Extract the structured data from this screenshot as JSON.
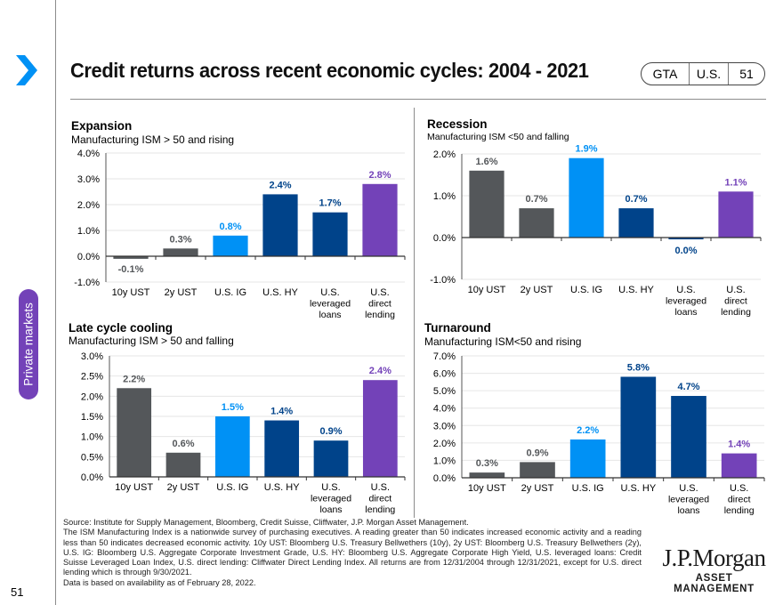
{
  "header": {
    "title": "Credit returns across recent economic cycles: 2004 - 2021",
    "pill": [
      "GTA",
      "U.S.",
      "51"
    ],
    "nav_icon": "chevron-right-icon"
  },
  "sidebar": {
    "section_tab": "Private markets",
    "page_number": "51"
  },
  "colors": {
    "treasury": "#54575a",
    "ig": "#0091f5",
    "hy": "#00438a",
    "direct_lending": "#7342b8",
    "accent": "#0091f5"
  },
  "chart_data": [
    {
      "type": "bar",
      "title": "Expansion",
      "subtitle": "Manufacturing ISM > 50 and rising",
      "categories": [
        "10y UST",
        "2y UST",
        "U.S. IG",
        "U.S. HY",
        "U.S. leveraged loans",
        "U.S. direct lending"
      ],
      "category_lines": [
        [
          "10y UST"
        ],
        [
          "2y UST"
        ],
        [
          "U.S. IG"
        ],
        [
          "U.S. HY"
        ],
        [
          "U.S.",
          "leveraged",
          "loans"
        ],
        [
          "U.S.",
          "direct",
          "lending"
        ]
      ],
      "values": [
        -0.1,
        0.3,
        0.8,
        2.4,
        1.7,
        2.8
      ],
      "labels": [
        "-0.1%",
        "0.3%",
        "0.8%",
        "2.4%",
        "1.7%",
        "2.8%"
      ],
      "ylim": [
        -1.0,
        4.0
      ],
      "yticks": [
        -1.0,
        0.0,
        1.0,
        2.0,
        3.0,
        4.0
      ],
      "ytick_labels": [
        "-1.0%",
        "0.0%",
        "1.0%",
        "2.0%",
        "3.0%",
        "4.0%"
      ],
      "grid": true,
      "xlabel": "",
      "ylabel": ""
    },
    {
      "type": "bar",
      "title": "Recession",
      "subtitle": "Manufacturing ISM <50 and falling",
      "categories": [
        "10y UST",
        "2y UST",
        "U.S. IG",
        "U.S. HY",
        "U.S. leveraged loans",
        "U.S. direct lending"
      ],
      "category_lines": [
        [
          "10y UST"
        ],
        [
          "2y UST"
        ],
        [
          "U.S. IG"
        ],
        [
          "U.S. HY"
        ],
        [
          "U.S.",
          "leveraged",
          "loans"
        ],
        [
          "U.S.",
          "direct",
          "lending"
        ]
      ],
      "values": [
        1.6,
        0.7,
        1.9,
        0.7,
        -0.04,
        1.1
      ],
      "labels": [
        "1.6%",
        "0.7%",
        "1.9%",
        "0.7%",
        "0.0%",
        "1.1%"
      ],
      "ylim": [
        -1.0,
        2.0
      ],
      "yticks": [
        -1.0,
        0.0,
        1.0,
        2.0
      ],
      "ytick_labels": [
        "-1.0%",
        "0.0%",
        "1.0%",
        "2.0%"
      ],
      "grid": true,
      "xlabel": "",
      "ylabel": ""
    },
    {
      "type": "bar",
      "title": "Late cycle cooling",
      "subtitle": "Manufacturing ISM > 50 and falling",
      "categories": [
        "10y UST",
        "2y UST",
        "U.S. IG",
        "U.S. HY",
        "U.S. leveraged loans",
        "U.S. direct lending"
      ],
      "category_lines": [
        [
          "10y UST"
        ],
        [
          "2y UST"
        ],
        [
          "U.S. IG"
        ],
        [
          "U.S. HY"
        ],
        [
          "U.S.",
          "leveraged",
          "loans"
        ],
        [
          "U.S.",
          "direct",
          "lending"
        ]
      ],
      "values": [
        2.2,
        0.6,
        1.5,
        1.4,
        0.9,
        2.4
      ],
      "labels": [
        "2.2%",
        "0.6%",
        "1.5%",
        "1.4%",
        "0.9%",
        "2.4%"
      ],
      "ylim": [
        0.0,
        3.0
      ],
      "yticks": [
        0.0,
        0.5,
        1.0,
        1.5,
        2.0,
        2.5,
        3.0
      ],
      "ytick_labels": [
        "0.0%",
        "0.5%",
        "1.0%",
        "1.5%",
        "2.0%",
        "2.5%",
        "3.0%"
      ],
      "grid": true,
      "xlabel": "",
      "ylabel": ""
    },
    {
      "type": "bar",
      "title": "Turnaround",
      "subtitle": "Manufacturing ISM<50 and rising",
      "categories": [
        "10y UST",
        "2y UST",
        "U.S. IG",
        "U.S. HY",
        "U.S. leveraged loans",
        "U.S. direct lending"
      ],
      "category_lines": [
        [
          "10y UST"
        ],
        [
          "2y UST"
        ],
        [
          "U.S. IG"
        ],
        [
          "U.S. HY"
        ],
        [
          "U.S.",
          "leveraged",
          "loans"
        ],
        [
          "U.S.",
          "direct",
          "lending"
        ]
      ],
      "values": [
        0.3,
        0.9,
        2.2,
        5.8,
        4.7,
        1.4
      ],
      "labels": [
        "0.3%",
        "0.9%",
        "2.2%",
        "5.8%",
        "4.7%",
        "1.4%"
      ],
      "ylim": [
        0.0,
        7.0
      ],
      "yticks": [
        0.0,
        1.0,
        2.0,
        3.0,
        4.0,
        5.0,
        6.0,
        7.0
      ],
      "ytick_labels": [
        "0.0%",
        "1.0%",
        "2.0%",
        "3.0%",
        "4.0%",
        "5.0%",
        "6.0%",
        "7.0%"
      ],
      "grid": true,
      "xlabel": "",
      "ylabel": ""
    }
  ],
  "footer": {
    "source_lines": [
      "Source: Institute for Supply Management, Bloomberg, Credit Suisse, Cliffwater, J.P. Morgan Asset Management.",
      "The ISM Manufacturing Index is a nationwide survey of purchasing executives. A reading greater than 50 indicates increased economic activity and a reading less than 50 indicates decreased economic activity. 10y UST: Bloomberg U.S. Treasury Bellwethers (10y), 2y UST: Bloomberg U.S. Treasury Bellwethers (2y), U.S. IG: Bloomberg U.S. Aggregate Corporate Investment Grade, U.S. HY: Bloomberg U.S. Aggregate Corporate High Yield, U.S. leveraged loans: Credit Suisse Leveraged Loan Index, U.S. direct lending: Cliffwater Direct Lending Index. All returns are from 12/31/2004 through 12/31/2021, except for U.S. direct lending which is through 9/30/2021.",
      "Data is based on availability as of February 28, 2022."
    ],
    "logo_main": "J.P.Morgan",
    "logo_sub": "ASSET MANAGEMENT"
  }
}
